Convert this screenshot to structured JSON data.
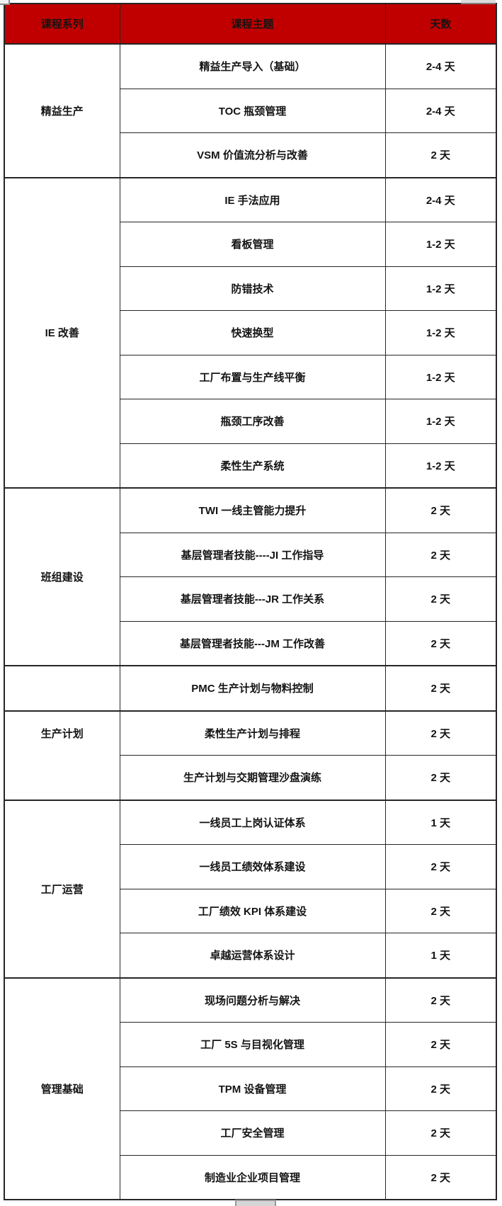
{
  "colors": {
    "header_bg": "#c00000",
    "border": "#262626",
    "text": "#141414",
    "page_bg": "#ffffff"
  },
  "header": {
    "series": "课程系列",
    "topic": "课程主题",
    "days": "天数"
  },
  "groups": [
    {
      "series": "精益生产",
      "rows": [
        {
          "topic": "精益生产导入（基础）",
          "days": "2-4 天"
        },
        {
          "topic": "TOC 瓶颈管理",
          "days": "2-4 天"
        },
        {
          "topic": "VSM 价值流分析与改善",
          "days": "2 天"
        }
      ]
    },
    {
      "series": "IE 改善",
      "rows": [
        {
          "topic": "IE 手法应用",
          "days": "2-4 天"
        },
        {
          "topic": "看板管理",
          "days": "1-2 天"
        },
        {
          "topic": "防错技术",
          "days": "1-2 天"
        },
        {
          "topic": "快速换型",
          "days": "1-2 天"
        },
        {
          "topic": "工厂布置与生产线平衡",
          "days": "1-2 天"
        },
        {
          "topic": "瓶颈工序改善",
          "days": "1-2 天"
        },
        {
          "topic": "柔性生产系统",
          "days": "1-2 天"
        }
      ]
    },
    {
      "series": "班组建设",
      "rows": [
        {
          "topic": "TWI 一线主管能力提升",
          "days": "2 天"
        },
        {
          "topic": "基层管理者技能----JI 工作指导",
          "days": "2 天"
        },
        {
          "topic": "基层管理者技能---JR 工作关系",
          "days": "2 天"
        },
        {
          "topic": "基层管理者技能---JM 工作改善",
          "days": "2 天"
        }
      ]
    },
    {
      "series": "",
      "rows": [
        {
          "topic": "PMC 生产计划与物料控制",
          "days": "2 天"
        }
      ]
    },
    {
      "series": "生产计划",
      "label_valign": "top",
      "rows": [
        {
          "topic": "柔性生产计划与排程",
          "days": "2 天"
        },
        {
          "topic": "生产计划与交期管理沙盘演练",
          "days": "2 天"
        }
      ]
    },
    {
      "series": "工厂运营",
      "rows": [
        {
          "topic": "一线员工上岗认证体系",
          "days": "1 天"
        },
        {
          "topic": "一线员工绩效体系建设",
          "days": "2 天"
        },
        {
          "topic": "工厂绩效 KPI 体系建设",
          "days": "2 天"
        },
        {
          "topic": "卓越运营体系设计",
          "days": "1 天"
        }
      ]
    },
    {
      "series": "管理基础",
      "rows": [
        {
          "topic": "现场问题分析与解决",
          "days": "2 天"
        },
        {
          "topic": "工厂 5S 与目视化管理",
          "days": "2 天"
        },
        {
          "topic": "TPM 设备管理",
          "days": "2 天"
        },
        {
          "topic": "工厂安全管理",
          "days": "2 天"
        },
        {
          "topic": "制造业企业项目管理",
          "days": "2 天"
        }
      ]
    }
  ]
}
